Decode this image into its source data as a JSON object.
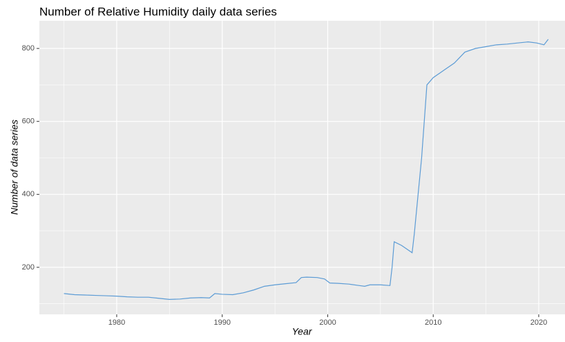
{
  "chart_data": {
    "type": "line",
    "title": "Number of Relative Humidity daily data series",
    "x_label": "Year",
    "y_label": "Number of data series",
    "x": [
      1975,
      1976,
      1977,
      1978,
      1979,
      1980,
      1981,
      1982,
      1983,
      1984,
      1985,
      1986,
      1987,
      1988,
      1988.8,
      1989.3,
      1990,
      1991,
      1992,
      1993,
      1994,
      1995,
      1996,
      1997,
      1997.5,
      1998,
      1999,
      1999.7,
      2000.2,
      2001,
      2002,
      2003,
      2003.5,
      2004,
      2005,
      2005.9,
      2006.1,
      2006.3,
      2007,
      2007.5,
      2008,
      2008.2,
      2008.5,
      2008.9,
      2009.2,
      2009.4,
      2010,
      2011,
      2012,
      2013,
      2014,
      2015,
      2016,
      2017,
      2018,
      2019,
      2019.8,
      2020.5,
      2020.9
    ],
    "series": [
      {
        "color": "#5b9bd5",
        "values": [
          128,
          125,
          124,
          123,
          122,
          121,
          119,
          118,
          118,
          115,
          112,
          113,
          116,
          117,
          116,
          128,
          126,
          125,
          130,
          138,
          148,
          152,
          155,
          158,
          172,
          173,
          172,
          168,
          157,
          156,
          154,
          150,
          148,
          152,
          152,
          150,
          200,
          270,
          260,
          250,
          240,
          290,
          380,
          500,
          620,
          700,
          720,
          740,
          760,
          790,
          800,
          805,
          810,
          812,
          815,
          818,
          815,
          810,
          825
        ]
      }
    ],
    "xlim": [
      1972.67,
      2022.49
    ],
    "ylim": [
      71,
      876
    ],
    "xticks": [
      1980,
      1990,
      2000,
      2010,
      2020
    ],
    "yticks": [
      200,
      400,
      600,
      800
    ],
    "x_minor_grid": [
      1975,
      1985,
      1995,
      2005,
      2015
    ],
    "y_minor_grid": [
      100,
      300,
      500,
      700
    ],
    "grid": true,
    "panel_color": "#ebebeb"
  }
}
